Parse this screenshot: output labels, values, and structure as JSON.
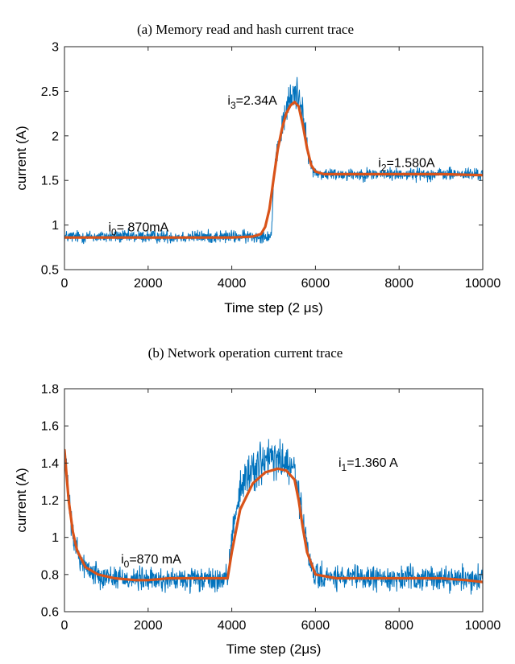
{
  "chart_data": [
    {
      "type": "line",
      "title": "(a) Memory read and hash current trace",
      "xlabel": "Time step (2 μs)",
      "ylabel": "current (A)",
      "xlim": [
        0,
        10000
      ],
      "ylim": [
        0.5,
        3
      ],
      "xticks": [
        0,
        2000,
        4000,
        6000,
        8000,
        10000
      ],
      "xtick_labels": [
        "0",
        "2000",
        "4000",
        "6000",
        "8000",
        "10000"
      ],
      "yticks": [
        0.5,
        1,
        1.5,
        2,
        2.5,
        3
      ],
      "ytick_labels": [
        "0.5",
        "1",
        "1.5",
        "2",
        "2.5",
        "3"
      ],
      "grid": false,
      "series": [
        {
          "role": "raw",
          "color": "#0072BD",
          "noise": 0.045,
          "x": [
            0,
            1000,
            2000,
            3000,
            4000,
            4500,
            4800,
            4950,
            5000,
            5100,
            5300,
            5500,
            5650,
            5750,
            5850,
            6000,
            6200,
            7000,
            8000,
            9000,
            10000
          ],
          "y": [
            0.87,
            0.87,
            0.87,
            0.87,
            0.87,
            0.87,
            0.88,
            0.88,
            1.55,
            1.85,
            2.3,
            2.5,
            2.42,
            2.05,
            1.72,
            1.58,
            1.57,
            1.57,
            1.57,
            1.57,
            1.57
          ]
        },
        {
          "role": "smoothed",
          "color": "#D95319",
          "x": [
            0,
            1000,
            2000,
            3000,
            4000,
            4500,
            4700,
            4800,
            4900,
            5000,
            5100,
            5200,
            5300,
            5400,
            5500,
            5600,
            5700,
            5800,
            5900,
            6000,
            6200,
            6500,
            7000,
            8000,
            9000,
            10000
          ],
          "y": [
            0.86,
            0.86,
            0.86,
            0.86,
            0.86,
            0.87,
            0.9,
            0.98,
            1.18,
            1.52,
            1.85,
            2.08,
            2.25,
            2.34,
            2.38,
            2.33,
            2.12,
            1.86,
            1.67,
            1.6,
            1.57,
            1.57,
            1.57,
            1.57,
            1.57,
            1.56
          ]
        }
      ],
      "annotations": [
        {
          "text": "i",
          "sub": "0",
          "rest": "= 870mA",
          "at": [
            1050,
            0.93
          ]
        },
        {
          "text": "i",
          "sub": "3",
          "rest": "=2.34A",
          "at": [
            3900,
            2.35
          ]
        },
        {
          "text": "i",
          "sub": "2",
          "rest": "=1.580A",
          "at": [
            7500,
            1.65
          ]
        }
      ]
    },
    {
      "type": "line",
      "title": "(b) Network operation current trace",
      "xlabel": "Time step (2μs)",
      "ylabel": "current (A)",
      "xlim": [
        0,
        10000
      ],
      "ylim": [
        0.6,
        1.8
      ],
      "xticks": [
        0,
        2000,
        4000,
        6000,
        8000,
        10000
      ],
      "xtick_labels": [
        "0",
        "2000",
        "4000",
        "6000",
        "8000",
        "10000"
      ],
      "yticks": [
        0.6,
        0.8,
        1,
        1.2,
        1.4,
        1.6,
        1.8
      ],
      "ytick_labels": [
        "0.6",
        "0.8",
        "1",
        "1.2",
        "1.4",
        "1.6",
        "1.8"
      ],
      "grid": false,
      "series": [
        {
          "role": "raw",
          "color": "#0072BD",
          "noise": 0.04,
          "x": [
            0,
            100,
            200,
            400,
            600,
            1000,
            1500,
            2000,
            3000,
            3900,
            4050,
            4200,
            4400,
            4700,
            5000,
            5300,
            5500,
            5700,
            5850,
            6000,
            6500,
            7000,
            8000,
            9000,
            10000
          ],
          "y": [
            1.45,
            1.2,
            1.0,
            0.87,
            0.82,
            0.79,
            0.78,
            0.77,
            0.77,
            0.77,
            1.1,
            1.25,
            1.35,
            1.4,
            1.42,
            1.4,
            1.35,
            1.1,
            0.87,
            0.79,
            0.78,
            0.78,
            0.78,
            0.78,
            0.78
          ]
        },
        {
          "role": "smoothed",
          "color": "#D95319",
          "x": [
            0,
            100,
            200,
            300,
            500,
            800,
            1200,
            1700,
            2000,
            2500,
            3000,
            3600,
            3900,
            4000,
            4200,
            4500,
            4800,
            5100,
            5300,
            5500,
            5600,
            5700,
            5800,
            6000,
            6500,
            7000,
            8000,
            9000,
            9600,
            10000
          ],
          "y": [
            1.47,
            1.2,
            1.03,
            0.93,
            0.84,
            0.8,
            0.78,
            0.77,
            0.77,
            0.78,
            0.78,
            0.78,
            0.78,
            0.92,
            1.15,
            1.29,
            1.35,
            1.37,
            1.36,
            1.31,
            1.2,
            1.05,
            0.92,
            0.8,
            0.78,
            0.78,
            0.78,
            0.78,
            0.77,
            0.76
          ]
        }
      ],
      "annotations": [
        {
          "text": "i",
          "sub": "0",
          "rest": "=870 mA",
          "at": [
            1350,
            0.86
          ]
        },
        {
          "text": "i",
          "sub": "1",
          "rest": "=1.360 A",
          "at": [
            6550,
            1.38
          ]
        }
      ]
    }
  ]
}
